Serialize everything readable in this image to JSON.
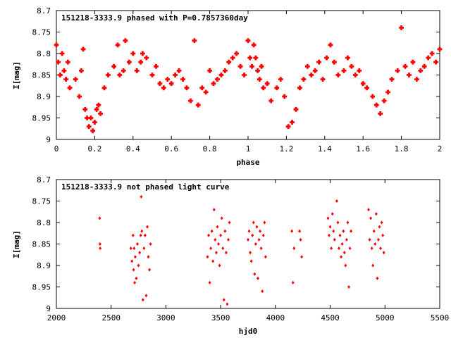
{
  "charts": [
    {
      "title": "151218-3333.9 phased with P=0.7857360day",
      "xlabel": "phase",
      "ylabel": "I[mag]",
      "xticks": [
        "0",
        "0.2",
        "0.4",
        "0.6",
        "0.8",
        "1",
        "1.2",
        "1.4",
        "1.6",
        "1.8",
        "2"
      ],
      "yticks": [
        "8.7",
        "8.75",
        "8.8",
        "8.85",
        "8.9",
        "8.95",
        "9"
      ]
    },
    {
      "title": "151218-3333.9 not phased light curve",
      "xlabel": "hjd0",
      "ylabel": "I[mag]",
      "xticks": [
        "2000",
        "2500",
        "3000",
        "3500",
        "4000",
        "4500",
        "5000",
        "5500"
      ],
      "yticks": [
        "8.7",
        "8.75",
        "8.8",
        "8.85",
        "8.9",
        "8.95",
        "9"
      ]
    }
  ],
  "chart_data": [
    {
      "type": "scatter",
      "title": "151218-3333.9 phased with P=0.7857360day",
      "xlabel": "phase",
      "ylabel": "I[mag]",
      "xlim": [
        0,
        2
      ],
      "ylim": [
        9,
        8.7
      ],
      "y_inverted": true,
      "marker_color": "#ff0000",
      "series": [
        {
          "x": [
            0.0,
            0.01,
            0.02,
            0.03,
            0.04,
            0.05,
            0.06,
            0.07,
            0.1,
            0.12,
            0.13,
            0.14,
            0.15,
            0.16,
            0.17,
            0.18,
            0.19,
            0.2,
            0.21,
            0.22,
            0.23,
            0.25,
            0.27,
            0.3,
            0.32,
            0.33,
            0.35,
            0.36,
            0.38,
            0.4,
            0.42,
            0.44,
            0.45,
            0.47,
            0.5,
            0.52,
            0.54,
            0.56,
            0.58,
            0.6,
            0.62,
            0.64,
            0.66,
            0.68,
            0.7,
            0.72,
            0.74,
            0.76,
            0.78,
            0.8,
            0.82,
            0.84,
            0.86,
            0.88,
            0.9,
            0.92,
            0.94,
            0.96,
            0.98,
            1.0,
            1.01,
            1.02,
            1.03,
            1.04,
            1.05,
            1.06,
            1.07,
            1.08,
            1.1,
            1.12,
            1.15,
            1.17,
            1.19,
            1.21,
            1.23,
            1.25,
            1.27,
            1.29,
            1.31,
            1.33,
            1.35,
            1.37,
            1.39,
            1.41,
            1.43,
            1.45,
            1.47,
            1.5,
            1.52,
            1.54,
            1.56,
            1.58,
            1.6,
            1.62,
            1.65,
            1.67,
            1.69,
            1.71,
            1.73,
            1.75,
            1.78,
            1.8,
            1.82,
            1.84,
            1.86,
            1.88,
            1.9,
            1.92,
            1.94,
            1.96,
            1.98,
            2.0
          ],
          "y": [
            8.78,
            8.82,
            8.85,
            8.8,
            8.84,
            8.86,
            8.82,
            8.88,
            8.86,
            8.9,
            8.84,
            8.79,
            8.93,
            8.95,
            8.97,
            8.95,
            8.98,
            8.96,
            8.93,
            8.92,
            8.94,
            8.88,
            8.85,
            8.83,
            8.78,
            8.85,
            8.84,
            8.77,
            8.82,
            8.8,
            8.84,
            8.82,
            8.8,
            8.81,
            8.85,
            8.83,
            8.87,
            8.88,
            8.86,
            8.87,
            8.85,
            8.84,
            8.86,
            8.88,
            8.91,
            8.77,
            8.92,
            8.88,
            8.89,
            8.84,
            8.87,
            8.86,
            8.85,
            8.84,
            8.82,
            8.81,
            8.8,
            8.83,
            8.85,
            8.77,
            8.81,
            8.83,
            8.78,
            8.81,
            8.84,
            8.86,
            8.83,
            8.88,
            8.87,
            8.91,
            8.88,
            8.86,
            8.9,
            8.97,
            8.96,
            8.93,
            8.88,
            8.86,
            8.83,
            8.85,
            8.84,
            8.82,
            8.86,
            8.81,
            8.78,
            8.82,
            8.85,
            8.84,
            8.81,
            8.83,
            8.85,
            8.84,
            8.87,
            8.88,
            8.9,
            8.92,
            8.94,
            8.91,
            8.89,
            8.86,
            8.84,
            8.74,
            8.83,
            8.85,
            8.82,
            8.86,
            8.84,
            8.83,
            8.81,
            8.8,
            8.82,
            8.79
          ]
        }
      ]
    },
    {
      "type": "scatter",
      "title": "151218-3333.9 not phased light curve",
      "xlabel": "hjd0",
      "ylabel": "I[mag]",
      "xlim": [
        2000,
        5500
      ],
      "ylim": [
        9,
        8.7
      ],
      "y_inverted": true,
      "marker_color": "#ff0000",
      "series": [
        {
          "x": [
            2395,
            2398,
            2400,
            2680,
            2690,
            2700,
            2705,
            2710,
            2715,
            2720,
            2730,
            2740,
            2750,
            2760,
            2770,
            2775,
            2780,
            2790,
            2800,
            2810,
            2820,
            2830,
            2840,
            2850,
            2860,
            3380,
            3390,
            3400,
            3410,
            3420,
            3430,
            3440,
            3450,
            3460,
            3470,
            3480,
            3490,
            3500,
            3510,
            3520,
            3530,
            3540,
            3550,
            3560,
            3570,
            3580,
            3750,
            3760,
            3770,
            3780,
            3790,
            3800,
            3810,
            3820,
            3830,
            3840,
            3850,
            3860,
            3870,
            3880,
            3890,
            3900,
            3910,
            4150,
            4160,
            4170,
            4220,
            4230,
            4240,
            4480,
            4490,
            4500,
            4510,
            4520,
            4530,
            4540,
            4560,
            4570,
            4580,
            4590,
            4600,
            4610,
            4620,
            4630,
            4640,
            4650,
            4660,
            4670,
            4680,
            4690,
            4850,
            4860,
            4870,
            4880,
            4890,
            4900,
            4910,
            4920,
            4930,
            4940,
            4950,
            4960,
            4970,
            4980,
            4990
          ],
          "y": [
            8.79,
            8.85,
            8.86,
            8.86,
            8.89,
            8.83,
            8.91,
            8.86,
            8.94,
            8.88,
            8.93,
            8.85,
            8.9,
            8.87,
            8.83,
            8.74,
            8.82,
            8.98,
            8.86,
            8.83,
            8.97,
            8.81,
            8.88,
            8.91,
            8.85,
            8.88,
            8.83,
            8.94,
            8.86,
            8.82,
            8.89,
            8.77,
            8.84,
            8.87,
            8.81,
            8.85,
            8.9,
            8.83,
            8.79,
            8.86,
            8.98,
            8.82,
            8.87,
            8.99,
            8.84,
            8.8,
            8.84,
            8.82,
            8.87,
            8.89,
            8.83,
            8.8,
            8.92,
            8.85,
            8.81,
            8.93,
            8.84,
            8.82,
            8.86,
            8.96,
            8.83,
            8.8,
            8.88,
            8.82,
            8.94,
            8.86,
            8.82,
            8.84,
            8.88,
            8.79,
            8.83,
            8.81,
            8.86,
            8.78,
            8.82,
            8.84,
            8.75,
            8.8,
            8.86,
            8.83,
            8.88,
            8.85,
            8.82,
            8.87,
            8.9,
            8.84,
            8.8,
            8.95,
            8.86,
            8.82,
            8.77,
            8.84,
            8.79,
            8.86,
            8.9,
            8.82,
            8.85,
            8.78,
            8.93,
            8.84,
            8.81,
            8.86,
            8.8,
            8.83,
            8.87
          ]
        }
      ]
    }
  ]
}
